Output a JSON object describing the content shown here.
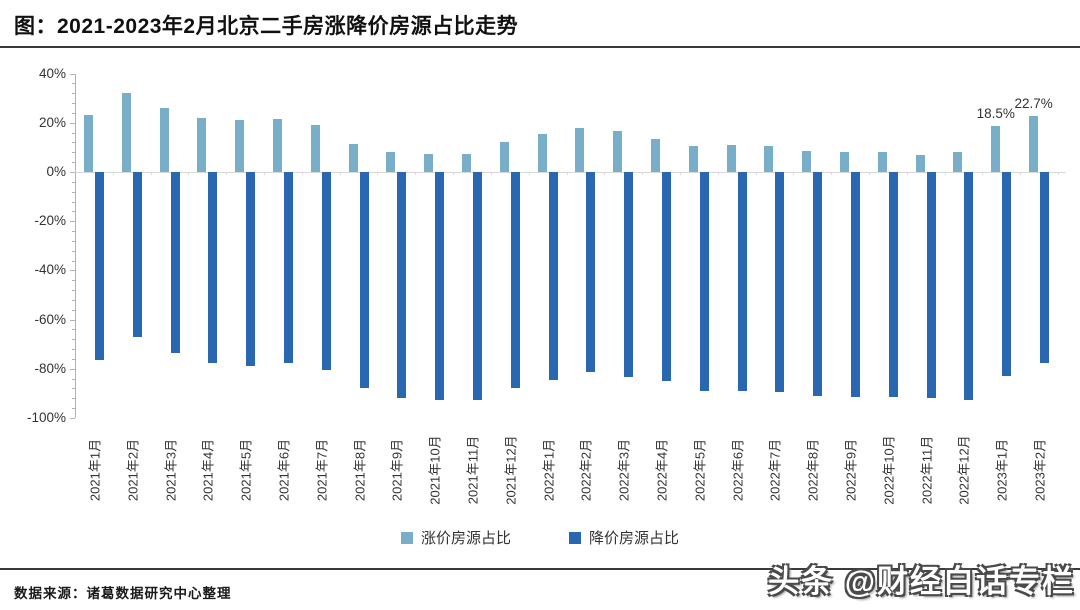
{
  "title": "图：2021-2023年2月北京二手房涨降价房源占比走势",
  "source": "数据来源：诸葛数据研究中心整理",
  "watermark": "头条 @财经白话专栏",
  "colors": {
    "up_series": "#79AEC8",
    "down_series": "#2A67B1",
    "rule": "#3a3a3a",
    "axis_line": "#b3b3b3",
    "zero_gridline": "#d9d9d9",
    "tick": "#b3b3b3",
    "label_text": "#333333"
  },
  "chart_data": {
    "type": "bar",
    "title": "图：2021-2023年2月北京二手房涨降价房源占比走势",
    "xlabel": "",
    "ylabel": "",
    "categories": [
      "2021年1月",
      "2021年2月",
      "2021年3月",
      "2021年4月",
      "2021年5月",
      "2021年6月",
      "2021年7月",
      "2021年8月",
      "2021年9月",
      "2021年10月",
      "2021年11月",
      "2021年12月",
      "2022年1月",
      "2022年2月",
      "2022年3月",
      "2022年4月",
      "2022年5月",
      "2022年6月",
      "2022年7月",
      "2022年8月",
      "2022年9月",
      "2022年10月",
      "2022年11月",
      "2022年12月",
      "2023年1月",
      "2023年2月"
    ],
    "series": [
      {
        "name": "涨价房源占比",
        "color": "#79AEC8",
        "values": [
          23,
          32,
          26,
          22,
          21,
          21.5,
          19,
          11.5,
          8,
          7.5,
          7.5,
          12,
          15.5,
          18,
          16.5,
          13.5,
          10.5,
          11,
          10.5,
          8.5,
          8,
          8,
          7,
          8,
          18.5,
          22.7
        ]
      },
      {
        "name": "降价房源占比",
        "color": "#2A67B1",
        "values": [
          -76.5,
          -67,
          -73.5,
          -77.5,
          -79,
          -77.5,
          -80.5,
          -88,
          -92,
          -92.5,
          -92.5,
          -88,
          -84.5,
          -81.5,
          -83.5,
          -85,
          -89,
          -89,
          -89.5,
          -91,
          -91.5,
          -91.5,
          -92,
          -92.5,
          -83,
          -77.5
        ]
      }
    ],
    "annotations": [
      {
        "category": "2023年1月",
        "series": "涨价房源占比",
        "text": "18.5%"
      },
      {
        "category": "2023年2月",
        "series": "涨价房源占比",
        "text": "22.7%"
      }
    ],
    "ylim": [
      -100,
      40
    ],
    "yticks": [
      "40%",
      "20%",
      "0%",
      "-20%",
      "-40%",
      "-60%",
      "-80%",
      "-100%"
    ],
    "ytick_values": [
      40,
      20,
      0,
      -20,
      -40,
      -60,
      -80,
      -100
    ],
    "y_minor_step": 4,
    "grid": "zero-line-only",
    "legend_position": "bottom"
  }
}
